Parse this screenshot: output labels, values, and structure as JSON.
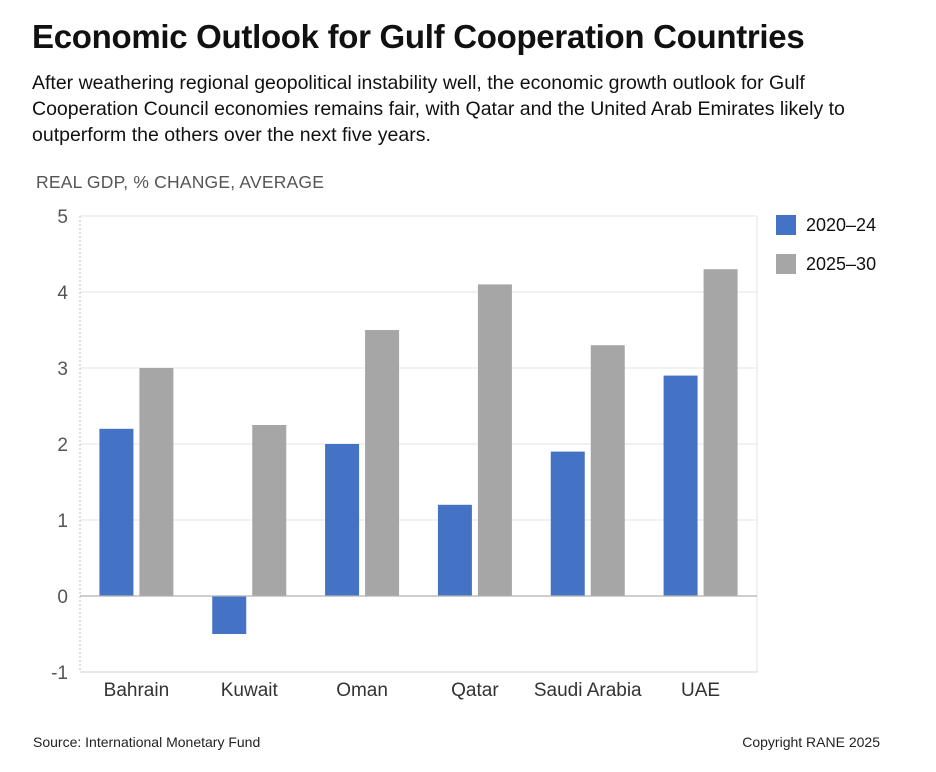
{
  "header": {
    "title": "Economic Outlook for Gulf Cooperation Countries",
    "subtitle": "After weathering regional geopolitical instability well, the economic growth outlook for Gulf Cooperation Council economies remains fair, with Qatar and the United Arab Emirates likely to outperform the others over the next five years."
  },
  "footer": {
    "source": "Source: International Monetary Fund",
    "copyright": "Copyright RANE 2025"
  },
  "chart_data": {
    "type": "bar",
    "ylabel": "REAL GDP, % CHANGE, AVERAGE",
    "xlabel": "",
    "categories": [
      "Bahrain",
      "Kuwait",
      "Oman",
      "Qatar",
      "Saudi Arabia",
      "UAE"
    ],
    "series": [
      {
        "name": "2020–24",
        "color": "#4472c4",
        "values": [
          2.2,
          -0.5,
          2.0,
          1.2,
          1.9,
          2.9
        ]
      },
      {
        "name": "2025–30",
        "color": "#a6a6a6",
        "values": [
          3.0,
          2.25,
          3.5,
          4.1,
          3.3,
          4.3
        ]
      }
    ],
    "ylim": [
      -1,
      5
    ],
    "yticks": [
      "5",
      "4",
      "3",
      "2",
      "1",
      "0",
      "-1"
    ],
    "grid": true,
    "legend": "right"
  }
}
